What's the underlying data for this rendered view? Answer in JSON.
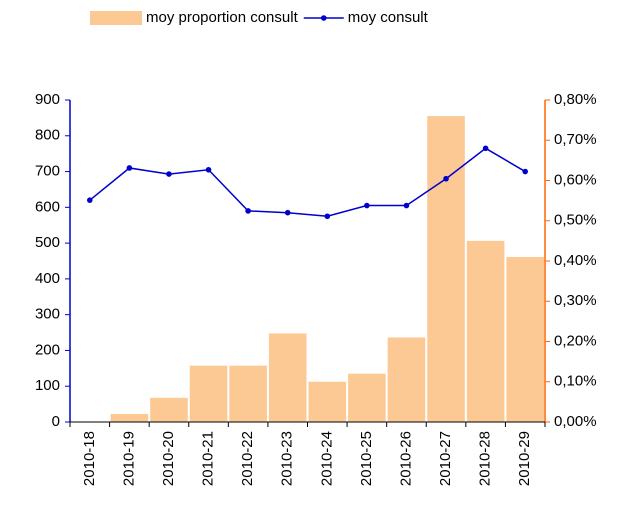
{
  "chart_data": {
    "type": "bar-line",
    "categories": [
      "2010-18",
      "2010-19",
      "2010-20",
      "2010-21",
      "2010-22",
      "2010-23",
      "2010-24",
      "2010-25",
      "2010-26",
      "2010-27",
      "2010-28",
      "2010-29"
    ],
    "series": [
      {
        "name": "moy proportion consult",
        "type": "bar",
        "axis": "y2",
        "color": "#fcc995",
        "values": [
          0,
          0.02,
          0.06,
          0.14,
          0.14,
          0.22,
          0.1,
          0.12,
          0.21,
          0.76,
          0.45,
          0.41
        ]
      },
      {
        "name": "moy consult",
        "type": "line",
        "axis": "y",
        "color": "#0000cc",
        "values": [
          620,
          710,
          693,
          705,
          590,
          585,
          575,
          605,
          605,
          680,
          765,
          700
        ]
      }
    ],
    "ylim": [
      0,
      900
    ],
    "yticks": [
      0,
      100,
      200,
      300,
      400,
      500,
      600,
      700,
      800,
      900
    ],
    "y_axis_color": "#0000cc",
    "y2lim": [
      0,
      0.8
    ],
    "y2ticks": [
      {
        "value": 0,
        "label": "0,00%"
      },
      {
        "value": 0.1,
        "label": "0,10%"
      },
      {
        "value": 0.2,
        "label": "0,20%"
      },
      {
        "value": 0.3,
        "label": "0,30%"
      },
      {
        "value": 0.4,
        "label": "0,40%"
      },
      {
        "value": 0.5,
        "label": "0,50%"
      },
      {
        "value": 0.6,
        "label": "0,60%"
      },
      {
        "value": 0.7,
        "label": "0,70%"
      },
      {
        "value": 0.8,
        "label": "0,80%"
      }
    ],
    "y2_axis_color": "#ff6600",
    "legend": "top"
  }
}
